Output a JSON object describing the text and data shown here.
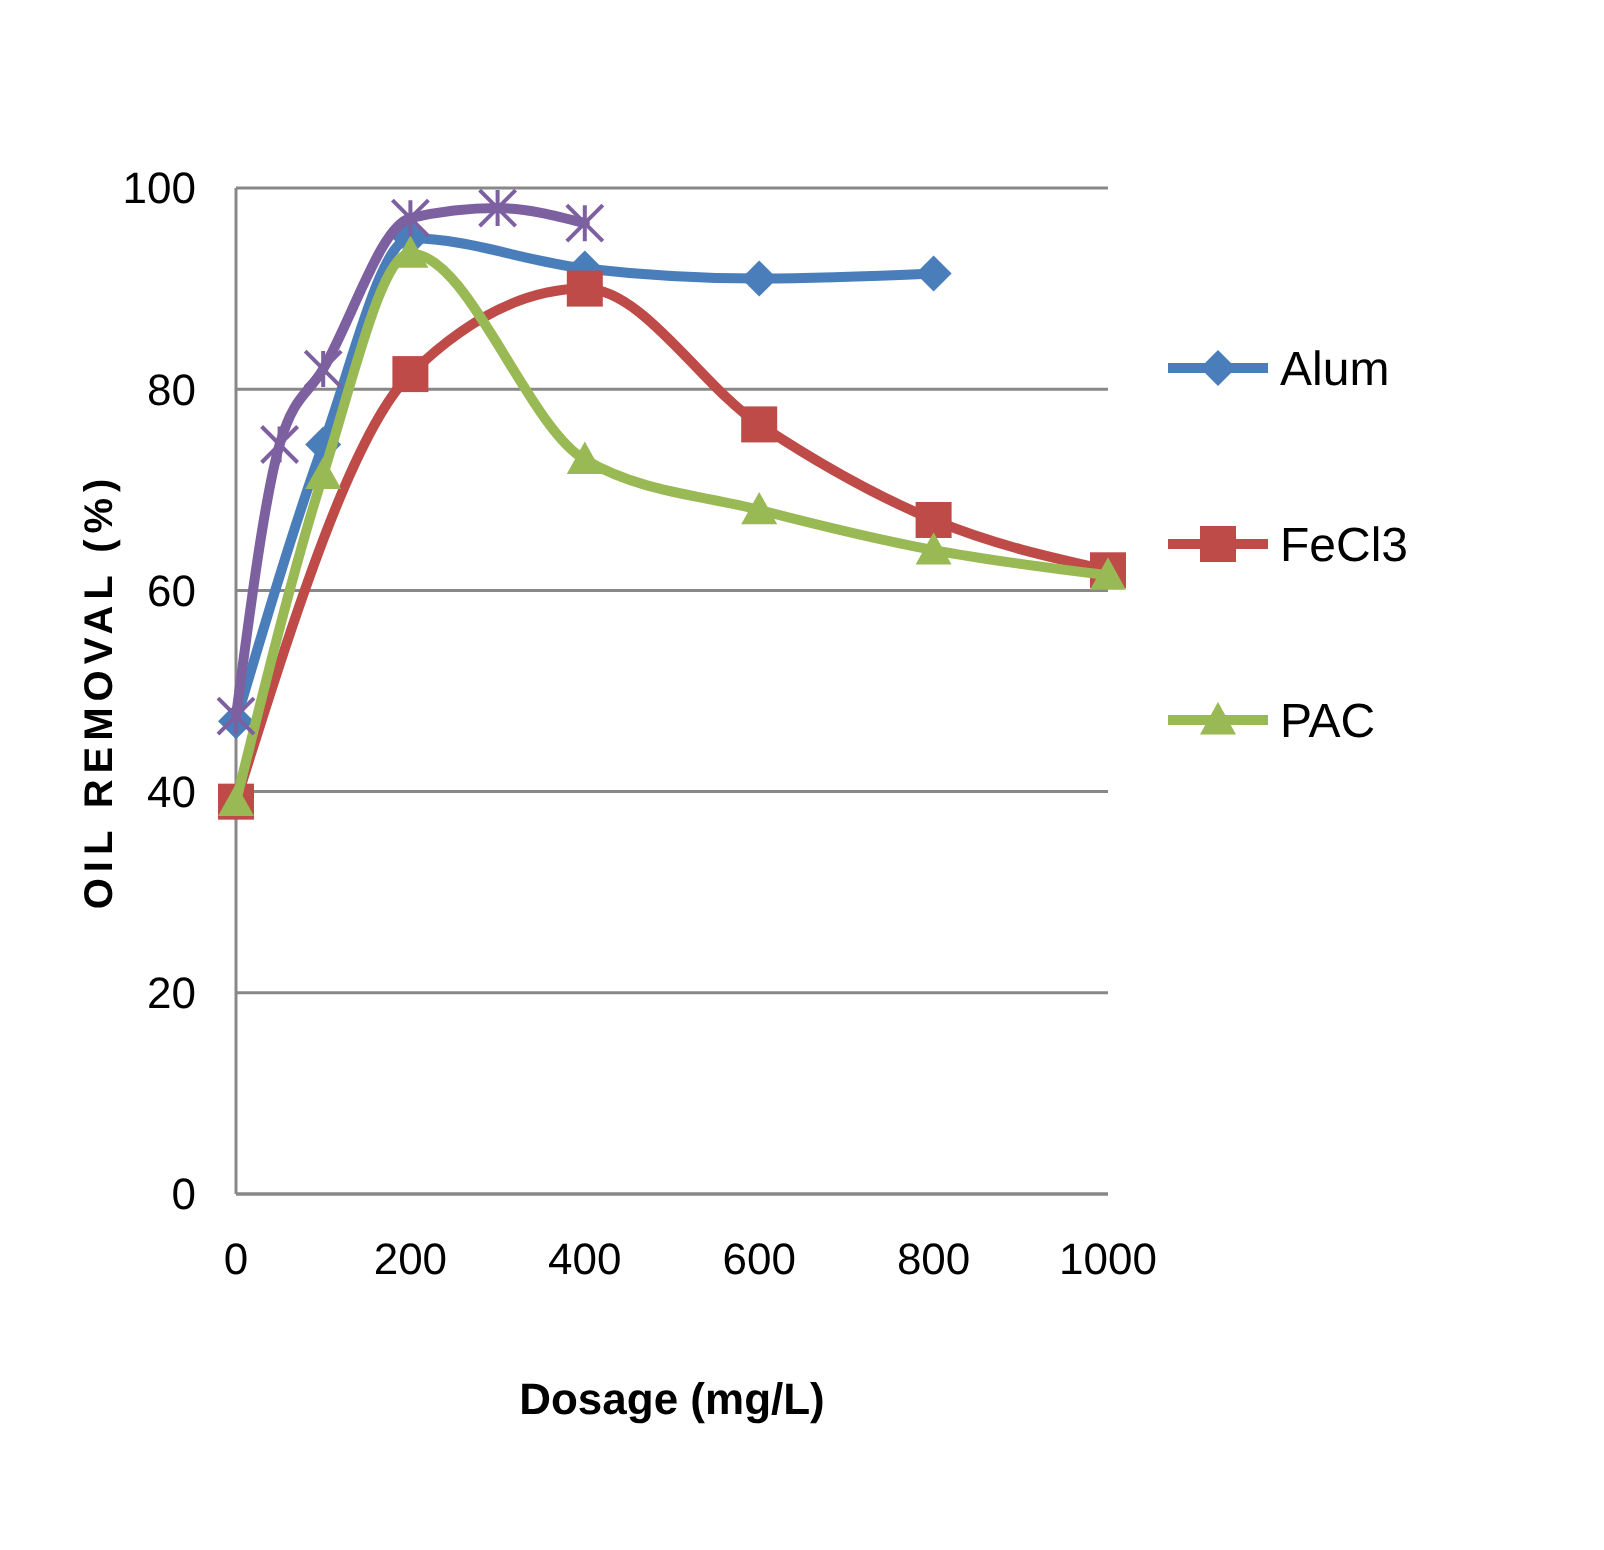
{
  "chart_data": {
    "type": "line",
    "xlabel": "Dosage (mg/L)",
    "ylabel": "OIL REMOVAL (%)",
    "xlim": [
      0,
      1000
    ],
    "xticks": [
      0,
      200,
      400,
      600,
      800,
      1000
    ],
    "ylim": [
      0,
      100
    ],
    "yticks": [
      0,
      20,
      40,
      60,
      80,
      100
    ],
    "grid": "y",
    "legend": "right",
    "line_style": "solid",
    "series": [
      {
        "name": "Alum",
        "color": "#4a7ebb",
        "marker": "diamond",
        "x": [
          0,
          100,
          200,
          400,
          600,
          800
        ],
        "values": [
          47,
          74.5,
          95,
          92,
          91,
          91.5
        ]
      },
      {
        "name": "FeCl3",
        "color": "#be4b48",
        "marker": "square",
        "x": [
          0,
          200,
          400,
          600,
          800,
          1000
        ],
        "values": [
          39,
          81.5,
          90,
          76.5,
          67,
          62
        ]
      },
      {
        "name": "PAC",
        "color": "#98b954",
        "marker": "triangle",
        "x": [
          0,
          100,
          200,
          400,
          600,
          800,
          1000
        ],
        "values": [
          39,
          71.5,
          93.5,
          73,
          68,
          64,
          61.5
        ]
      },
      {
        "color": "#7d60a0",
        "marker": "cross",
        "x": [
          0,
          50,
          100,
          200,
          300,
          400
        ],
        "values": [
          47.5,
          74.5,
          82,
          97,
          98,
          96.5
        ]
      }
    ]
  }
}
